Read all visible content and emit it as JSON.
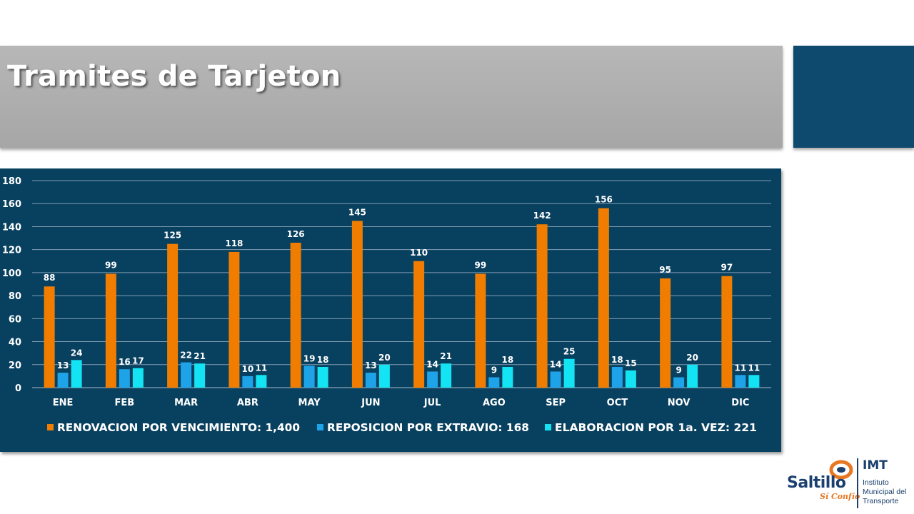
{
  "slide": {
    "title": "Tramites de Tarjeton"
  },
  "logo": {
    "name": "Saltillo",
    "slogan": "Sí Confío",
    "org_short": "IMT",
    "org_line1": "Instituto",
    "org_line2": "Municipal del",
    "org_line3": "Transporte"
  },
  "chart_data": {
    "type": "bar",
    "categories": [
      "ENE",
      "FEB",
      "MAR",
      "ABR",
      "MAY",
      "JUN",
      "JUL",
      "AGO",
      "SEP",
      "OCT",
      "NOV",
      "DIC"
    ],
    "series": [
      {
        "name": "RENOVACION POR VENCIMIENTO: 1,400",
        "color": "#f07d00",
        "values": [
          88,
          99,
          125,
          118,
          126,
          145,
          110,
          99,
          142,
          156,
          95,
          97
        ]
      },
      {
        "name": "REPOSICION POR EXTRAVIO: 168",
        "color": "#1ea3e8",
        "values": [
          13,
          16,
          22,
          10,
          19,
          13,
          14,
          9,
          14,
          18,
          9,
          11
        ]
      },
      {
        "name": "ELABORACION POR 1a. VEZ: 221",
        "color": "#13e3f2",
        "values": [
          24,
          17,
          21,
          11,
          18,
          20,
          21,
          18,
          25,
          15,
          20,
          11
        ]
      }
    ],
    "yticks": [
      0,
      20,
      40,
      60,
      80,
      100,
      120,
      140,
      160,
      180
    ],
    "ylim": [
      0,
      180
    ],
    "grid": true,
    "legend_position": "bottom",
    "data_labels": true
  }
}
